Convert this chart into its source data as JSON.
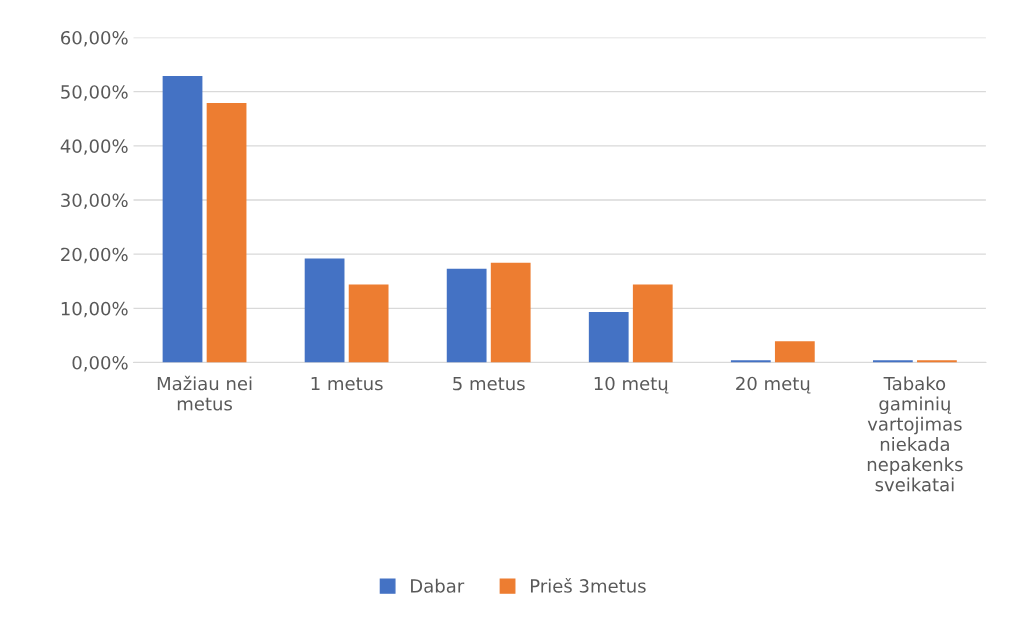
{
  "chart_data": {
    "type": "bar",
    "categories": [
      "Mažiau nei metus",
      "1 metus",
      "5 metus",
      "10 metų",
      "20 metų",
      "Tabako gaminių vartojimas niekada nepakenks sveikatai"
    ],
    "series": [
      {
        "name": "Dabar",
        "color": "#4472c4",
        "values": [
          52.9,
          19.2,
          17.3,
          9.3,
          0.4,
          0.4
        ]
      },
      {
        "name": "Prieš 3metus",
        "color": "#ed7d31",
        "values": [
          47.9,
          14.4,
          18.4,
          14.4,
          3.9,
          0.4
        ]
      }
    ],
    "ylim": [
      0,
      60
    ],
    "yticks": [
      {
        "value": 0,
        "label": "0,00%"
      },
      {
        "value": 10,
        "label": "10,00%"
      },
      {
        "value": 20,
        "label": "20,00%"
      },
      {
        "value": 30,
        "label": "30,00%"
      },
      {
        "value": 40,
        "label": "40,00%"
      },
      {
        "value": 50,
        "label": "50,00%"
      },
      {
        "value": 60,
        "label": "60,00%"
      }
    ],
    "grid": "y",
    "legend": "bottom"
  }
}
